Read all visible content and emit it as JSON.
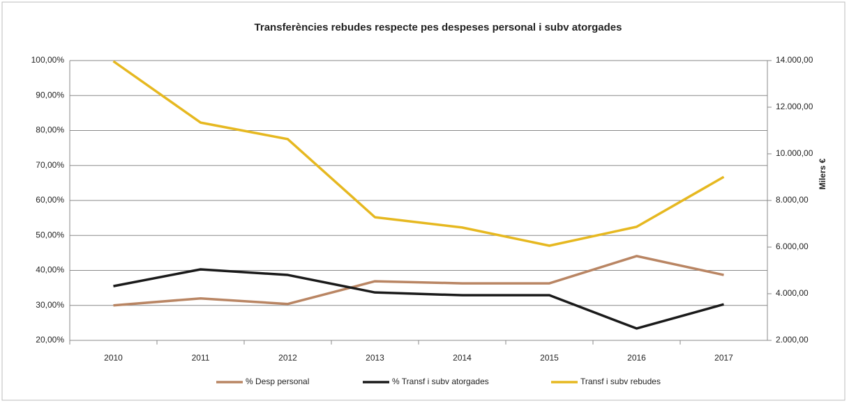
{
  "chart_data": {
    "type": "line",
    "title": "Transferències rebudes respecte pes despeses personal i subv atorgades",
    "y2_label": "Milers €",
    "categories": [
      "2010",
      "2011",
      "2012",
      "2013",
      "2014",
      "2015",
      "2016",
      "2017"
    ],
    "ylim": [
      20,
      100
    ],
    "yticks": [
      {
        "value": 20,
        "label": "20,00%"
      },
      {
        "value": 30,
        "label": "30,00%"
      },
      {
        "value": 40,
        "label": "40,00%"
      },
      {
        "value": 50,
        "label": "50,00%"
      },
      {
        "value": 60,
        "label": "60,00%"
      },
      {
        "value": 70,
        "label": "70,00%"
      },
      {
        "value": 80,
        "label": "80,00%"
      },
      {
        "value": 90,
        "label": "90,00%"
      },
      {
        "value": 100,
        "label": "100,00%"
      }
    ],
    "y2lim": [
      2000,
      14000
    ],
    "y2ticks": [
      {
        "value": 2000,
        "label": "2.000,00"
      },
      {
        "value": 4000,
        "label": "4.000,00"
      },
      {
        "value": 6000,
        "label": "6.000,00"
      },
      {
        "value": 8000,
        "label": "8.000,00"
      },
      {
        "value": 10000,
        "label": "10.000,00"
      },
      {
        "value": 12000,
        "label": "12.000,00"
      },
      {
        "value": 14000,
        "label": "14.000,00"
      }
    ],
    "grid": true,
    "legend": "bottom",
    "series": [
      {
        "name": "% Desp personal",
        "color": "#b98563",
        "values": [
          30.0,
          32.0,
          30.4,
          36.9,
          36.3,
          36.3,
          44.1,
          38.7
        ]
      },
      {
        "name": "% Transf i subv atorgades",
        "color": "#1a1a1a",
        "values": [
          35.5,
          40.3,
          38.7,
          33.7,
          32.9,
          32.9,
          23.4,
          30.3
        ]
      },
      {
        "name": "Transf i subv rebudes",
        "color": "#e6b820",
        "axis": "y2",
        "values": [
          13970,
          11340,
          10630,
          7280,
          6840,
          6060,
          6870,
          9010
        ]
      }
    ]
  }
}
